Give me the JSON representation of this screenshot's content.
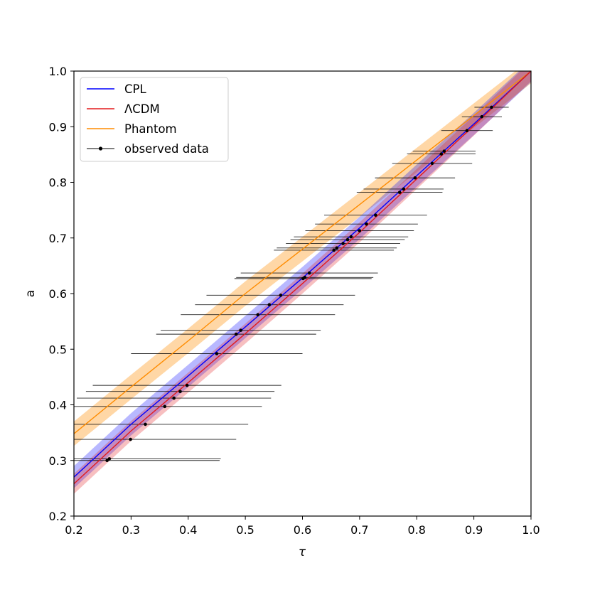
{
  "chart_data": {
    "type": "line",
    "xlabel": "τ",
    "ylabel": "a",
    "xlim": [
      0.2,
      1.0
    ],
    "ylim": [
      0.2,
      1.0
    ],
    "xticks": [
      "0.2",
      "0.3",
      "0.4",
      "0.5",
      "0.6",
      "0.7",
      "0.8",
      "0.9",
      "1.0"
    ],
    "yticks": [
      "0.2",
      "0.3",
      "0.4",
      "0.5",
      "0.6",
      "0.7",
      "0.8",
      "0.9",
      "1.0"
    ],
    "grid": false,
    "legend_position": "top-left",
    "colors": {
      "CPL": "#0000ff",
      "LCDM": "#e41a1c",
      "Phantom": "#ff8c00",
      "observed": "#000000"
    },
    "legend": [
      "CPL",
      "ΛCDM",
      "Phantom",
      "observed data"
    ],
    "series": [
      {
        "name": "CPL",
        "x": [
          0.2,
          0.3,
          0.4,
          0.5,
          0.6,
          0.7,
          0.8,
          0.9,
          1.0
        ],
        "y": [
          0.27,
          0.365,
          0.452,
          0.54,
          0.628,
          0.718,
          0.812,
          0.905,
          1.0
        ],
        "band": 0.02
      },
      {
        "name": "ΛCDM",
        "x": [
          0.2,
          0.3,
          0.4,
          0.5,
          0.6,
          0.7,
          0.8,
          0.9,
          1.0
        ],
        "y": [
          0.258,
          0.353,
          0.44,
          0.528,
          0.618,
          0.71,
          0.806,
          0.902,
          1.0
        ],
        "band": 0.018
      },
      {
        "name": "Phantom",
        "x": [
          0.2,
          0.3,
          0.4,
          0.5,
          0.6,
          0.7,
          0.8,
          0.9,
          1.0
        ],
        "y": [
          0.348,
          0.432,
          0.515,
          0.6,
          0.68,
          0.76,
          0.84,
          0.92,
          1.0
        ],
        "band": 0.022
      },
      {
        "name": "observed data",
        "points": [
          {
            "x": 0.931,
            "y": 0.935,
            "xerr": 0.03
          },
          {
            "x": 0.914,
            "y": 0.918,
            "xerr": 0.035
          },
          {
            "x": 0.888,
            "y": 0.893,
            "xerr": 0.045
          },
          {
            "x": 0.848,
            "y": 0.856,
            "xerr": 0.055
          },
          {
            "x": 0.843,
            "y": 0.851,
            "xerr": 0.06
          },
          {
            "x": 0.827,
            "y": 0.834,
            "xerr": 0.07
          },
          {
            "x": 0.797,
            "y": 0.808,
            "xerr": 0.07
          },
          {
            "x": 0.777,
            "y": 0.788,
            "xerr": 0.07
          },
          {
            "x": 0.77,
            "y": 0.782,
            "xerr": 0.075
          },
          {
            "x": 0.728,
            "y": 0.741,
            "xerr": 0.09
          },
          {
            "x": 0.712,
            "y": 0.725,
            "xerr": 0.09
          },
          {
            "x": 0.7,
            "y": 0.713,
            "xerr": 0.095
          },
          {
            "x": 0.685,
            "y": 0.702,
            "xerr": 0.1
          },
          {
            "x": 0.679,
            "y": 0.697,
            "xerr": 0.1
          },
          {
            "x": 0.671,
            "y": 0.69,
            "xerr": 0.1
          },
          {
            "x": 0.66,
            "y": 0.682,
            "xerr": 0.105
          },
          {
            "x": 0.655,
            "y": 0.678,
            "xerr": 0.105
          },
          {
            "x": 0.612,
            "y": 0.637,
            "xerr": 0.12
          },
          {
            "x": 0.604,
            "y": 0.629,
            "xerr": 0.12
          },
          {
            "x": 0.601,
            "y": 0.627,
            "xerr": 0.12
          },
          {
            "x": 0.562,
            "y": 0.597,
            "xerr": 0.13
          },
          {
            "x": 0.542,
            "y": 0.58,
            "xerr": 0.13
          },
          {
            "x": 0.522,
            "y": 0.562,
            "xerr": 0.135
          },
          {
            "x": 0.492,
            "y": 0.534,
            "xerr": 0.14
          },
          {
            "x": 0.484,
            "y": 0.527,
            "xerr": 0.14
          },
          {
            "x": 0.45,
            "y": 0.492,
            "xerr": 0.15
          },
          {
            "x": 0.398,
            "y": 0.435,
            "xerr": 0.165
          },
          {
            "x": 0.386,
            "y": 0.424,
            "xerr": 0.165
          },
          {
            "x": 0.375,
            "y": 0.412,
            "xerr": 0.17
          },
          {
            "x": 0.359,
            "y": 0.397,
            "xerr": 0.17
          },
          {
            "x": 0.325,
            "y": 0.365,
            "xerr": 0.18
          },
          {
            "x": 0.299,
            "y": 0.338,
            "xerr": 0.185
          },
          {
            "x": 0.262,
            "y": 0.303,
            "xerr": 0.195
          },
          {
            "x": 0.258,
            "y": 0.3,
            "xerr": 0.197
          }
        ]
      }
    ]
  }
}
